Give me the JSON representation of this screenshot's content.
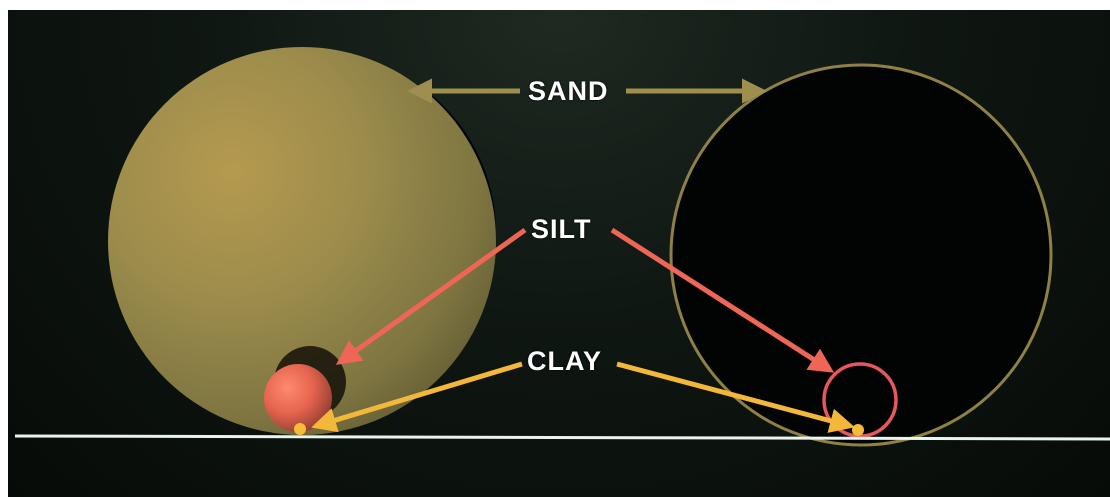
{
  "labels": {
    "sand": "SAND",
    "silt": "SILT",
    "clay": "CLAY"
  },
  "colors": {
    "background": "#0b120d",
    "sand_fill": "#a99a4e",
    "sand_outline": "#8f8046",
    "silt_fill": "#e5644e",
    "silt_outline": "#e6585a",
    "clay": "#f3bd3a",
    "sand_arrow": "#9e8f4f",
    "silt_arrow": "#ef6657",
    "clay_arrow": "#f3b73a",
    "baseline": "#e8f4f0",
    "label_text": "#ffffff"
  }
}
